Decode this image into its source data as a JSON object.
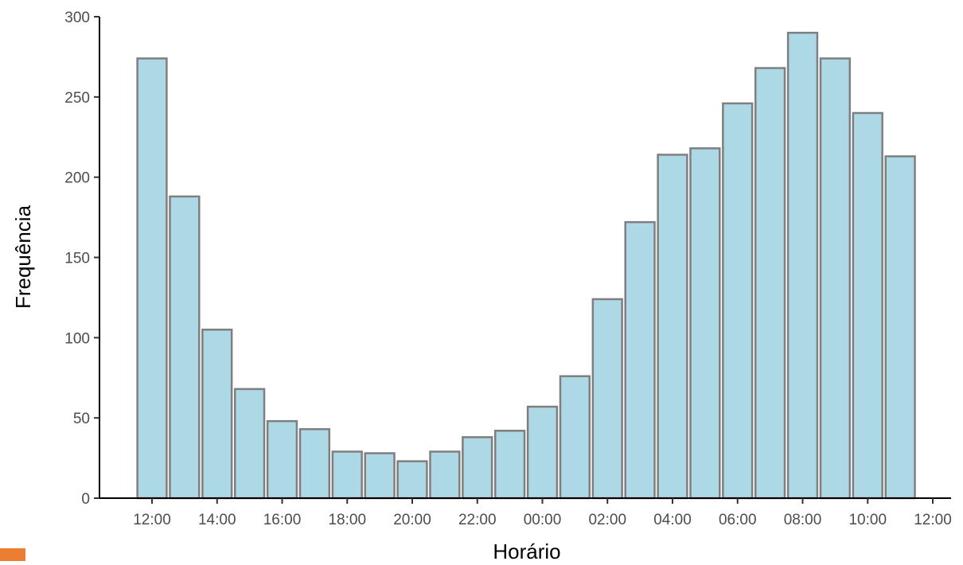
{
  "chart_data": {
    "type": "bar",
    "title": "",
    "xlabel": "Horário",
    "ylabel": "Frequência",
    "ylim": [
      0,
      300
    ],
    "yticks": [
      0,
      50,
      100,
      150,
      200,
      250,
      300
    ],
    "x_range": [
      0,
      24
    ],
    "bar_width_hours": 0.9,
    "x_ticks": [
      {
        "pos": 0,
        "label": "12:00"
      },
      {
        "pos": 2,
        "label": "14:00"
      },
      {
        "pos": 4,
        "label": "16:00"
      },
      {
        "pos": 6,
        "label": "18:00"
      },
      {
        "pos": 8,
        "label": "20:00"
      },
      {
        "pos": 10,
        "label": "22:00"
      },
      {
        "pos": 12,
        "label": "00:00"
      },
      {
        "pos": 14,
        "label": "02:00"
      },
      {
        "pos": 16,
        "label": "04:00"
      },
      {
        "pos": 18,
        "label": "06:00"
      },
      {
        "pos": 20,
        "label": "08:00"
      },
      {
        "pos": 22,
        "label": "10:00"
      },
      {
        "pos": 24,
        "label": "12:00"
      }
    ],
    "bars": [
      {
        "x": 0,
        "value": 274
      },
      {
        "x": 1,
        "value": 188
      },
      {
        "x": 2,
        "value": 105
      },
      {
        "x": 3,
        "value": 68
      },
      {
        "x": 4,
        "value": 48
      },
      {
        "x": 5,
        "value": 43
      },
      {
        "x": 6,
        "value": 29
      },
      {
        "x": 7,
        "value": 28
      },
      {
        "x": 8,
        "value": 23
      },
      {
        "x": 9,
        "value": 29
      },
      {
        "x": 10,
        "value": 38
      },
      {
        "x": 11,
        "value": 42
      },
      {
        "x": 12,
        "value": 57
      },
      {
        "x": 13,
        "value": 76
      },
      {
        "x": 14,
        "value": 124
      },
      {
        "x": 15,
        "value": 172
      },
      {
        "x": 16,
        "value": 214
      },
      {
        "x": 17,
        "value": 218
      },
      {
        "x": 18,
        "value": 246
      },
      {
        "x": 19,
        "value": 268
      },
      {
        "x": 20,
        "value": 290
      },
      {
        "x": 21,
        "value": 274
      },
      {
        "x": 22,
        "value": 240
      },
      {
        "x": 23,
        "value": 213
      }
    ],
    "colors": {
      "bar_fill": "#add8e6",
      "bar_stroke": "#7f7f7f",
      "axis": "#000000",
      "tick_text": "#4d4d4d"
    },
    "grid": false,
    "legend": "none"
  },
  "decor": {
    "corner_mark_color": "#ed7d31"
  }
}
